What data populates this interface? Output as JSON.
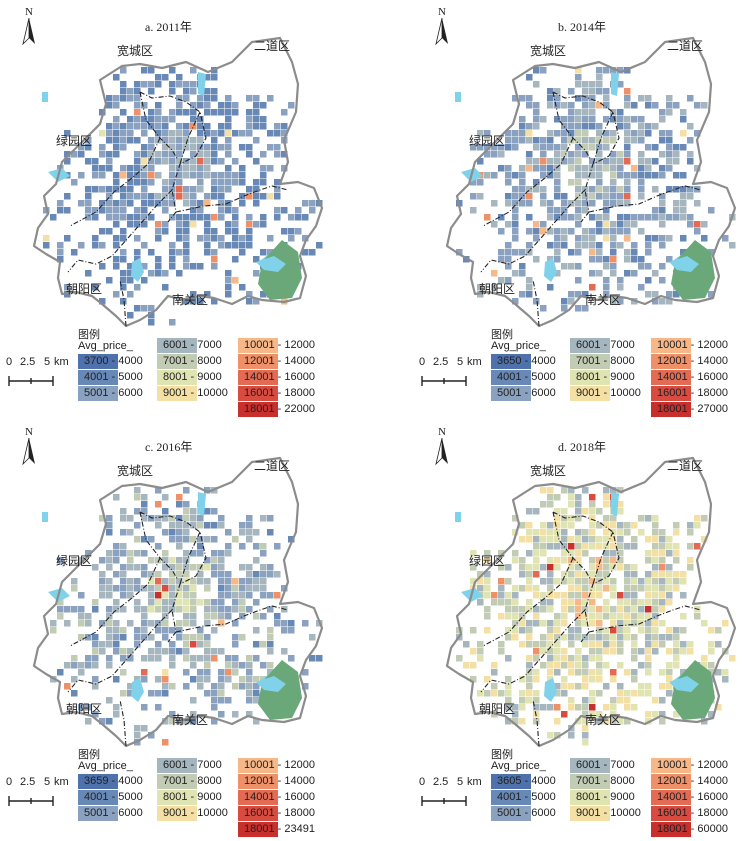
{
  "colors": {
    "water": "#7fd2ea",
    "park": "#6aa879",
    "boundary": "#8c8c8c",
    "bins": [
      "#4f72ac",
      "#6888b6",
      "#8aa1c0",
      "#a5b6bf",
      "#c2cbb4",
      "#e0e4b2",
      "#f4e0a4",
      "#f6b889",
      "#ee9068",
      "#e36a53",
      "#d84b40",
      "#c8302e"
    ]
  },
  "common": {
    "north_label": "N",
    "legend_title": "图例",
    "field_name": "Avg_price_",
    "scale": {
      "ticks": [
        "0",
        "2.5",
        "5"
      ],
      "unit": "km"
    },
    "districts": {
      "kuancheng": "宽城区",
      "erdao": "二道区",
      "lvyuan": "绿园区",
      "chaoyang": "朝阳区",
      "nanguan": "南关区"
    },
    "shared_classes": [
      "4001 - 5000",
      "5001 - 6000",
      "6001 - 7000",
      "7001 - 8000",
      "8001 - 9000",
      "9001 - 10000",
      "10001 - 12000",
      "12001 - 14000",
      "14001 - 16000",
      "16001 - 18000"
    ]
  },
  "panels": [
    {
      "title": "a. 2011年",
      "min_class": "3700 - 4000",
      "max_class": "18001 - 22000"
    },
    {
      "title": "b. 2014年",
      "min_class": "3650 - 4000",
      "max_class": "18001 - 27000"
    },
    {
      "title": "c. 2016年",
      "min_class": "3659 - 4000",
      "max_class": "18001 - 23491"
    },
    {
      "title": "d. 2018年",
      "min_class": "3605 - 4000",
      "max_class": "18001 - 60000"
    }
  ]
}
